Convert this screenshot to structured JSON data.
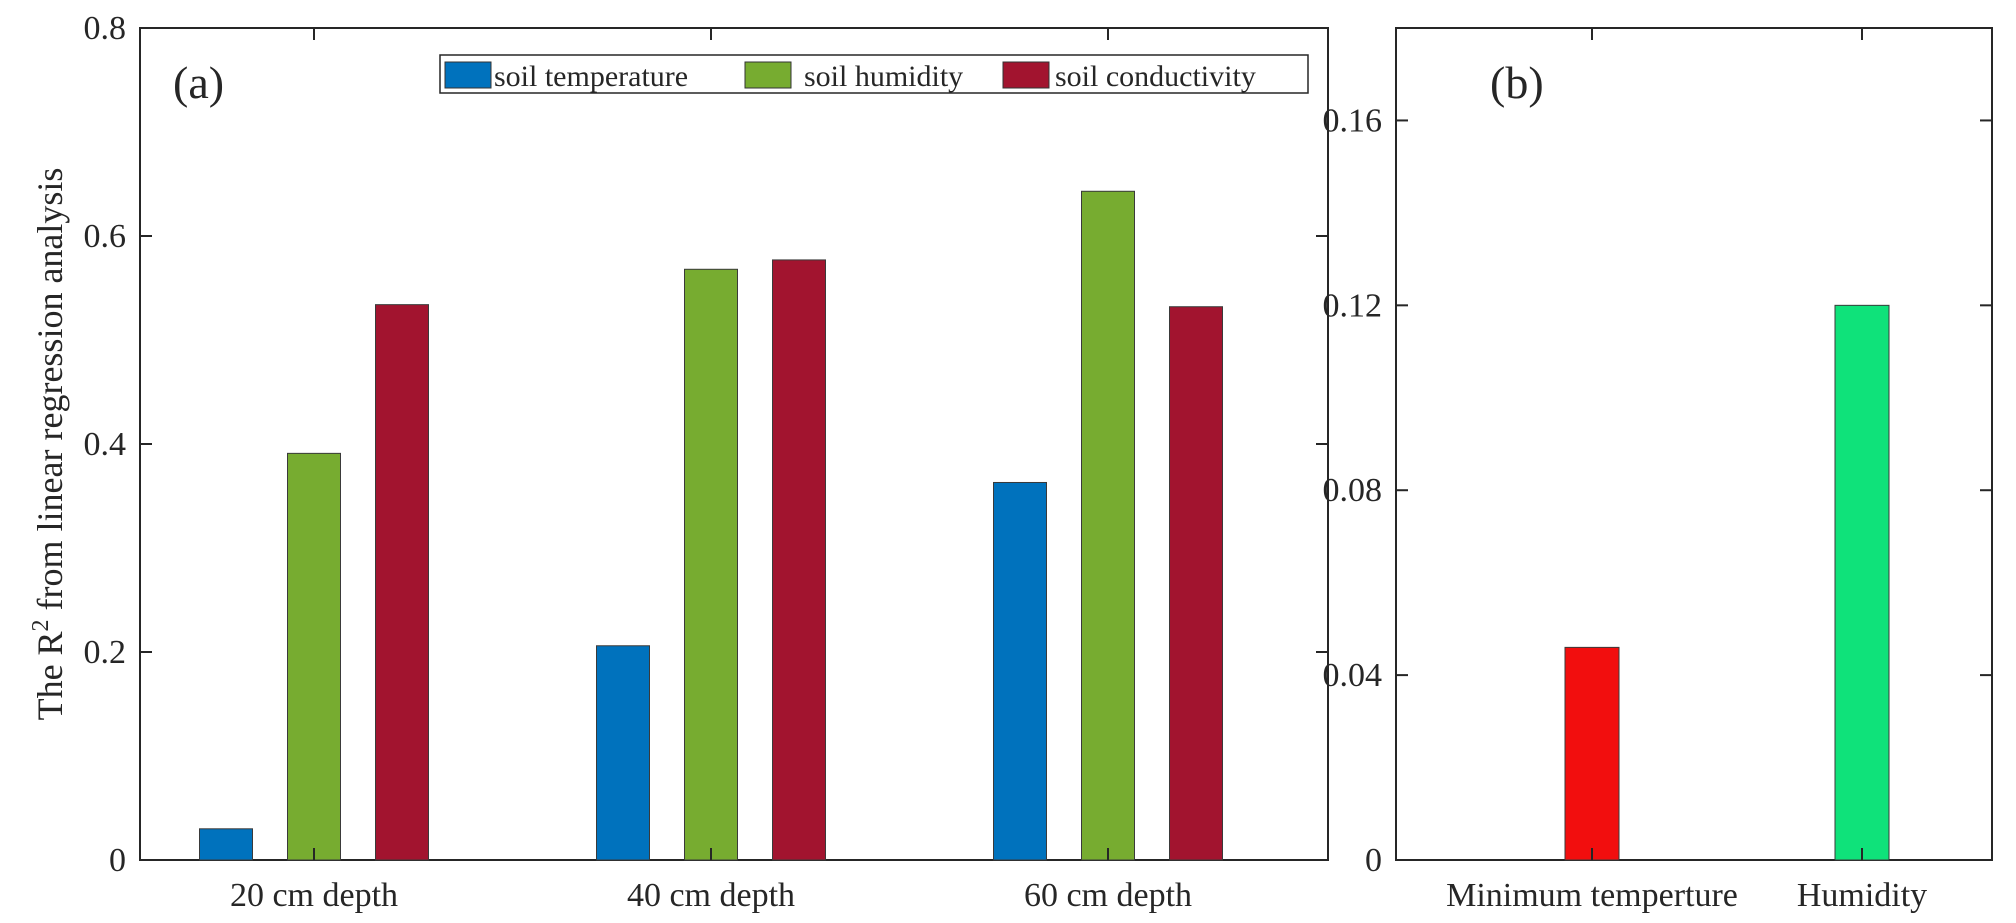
{
  "chart_data": [
    {
      "id": "a",
      "type": "bar",
      "panel_label": "(a)",
      "title": "",
      "xlabel": "",
      "ylabel_prefix": "The R",
      "ylabel_superscript": "2",
      "ylabel_suffix": " from linear regression analysis",
      "ylim": [
        0,
        0.8
      ],
      "yticks": [
        0,
        0.2,
        0.4,
        0.6,
        0.8
      ],
      "ytick_labels": [
        "0",
        "0.2",
        "0.4",
        "0.6",
        "0.8"
      ],
      "categories": [
        "20 cm depth",
        "40 cm depth",
        "60 cm depth"
      ],
      "series": [
        {
          "name": "soil temperature",
          "color": "#0072BD",
          "values": [
            0.03,
            0.206,
            0.363
          ]
        },
        {
          "name": "soil humidity",
          "color": "#77AC30",
          "values": [
            0.391,
            0.568,
            0.643
          ]
        },
        {
          "name": "soil conductivity",
          "color": "#A2142F",
          "values": [
            0.534,
            0.577,
            0.532
          ]
        }
      ],
      "legend_position": "top-right",
      "grid": false
    },
    {
      "id": "b",
      "type": "bar",
      "panel_label": "(b)",
      "title": "",
      "xlabel": "",
      "ylabel": "",
      "ylim": [
        0,
        0.18
      ],
      "yticks": [
        0,
        0.04,
        0.08,
        0.12,
        0.16
      ],
      "ytick_labels": [
        "0",
        "0.04",
        "0.08",
        "0.12",
        "0.16"
      ],
      "categories": [
        "Minimum temperture",
        "Humidity"
      ],
      "values": [
        0.046,
        0.12
      ],
      "colors": [
        "#F20E0E",
        "#0FE27A"
      ],
      "grid": false
    }
  ]
}
